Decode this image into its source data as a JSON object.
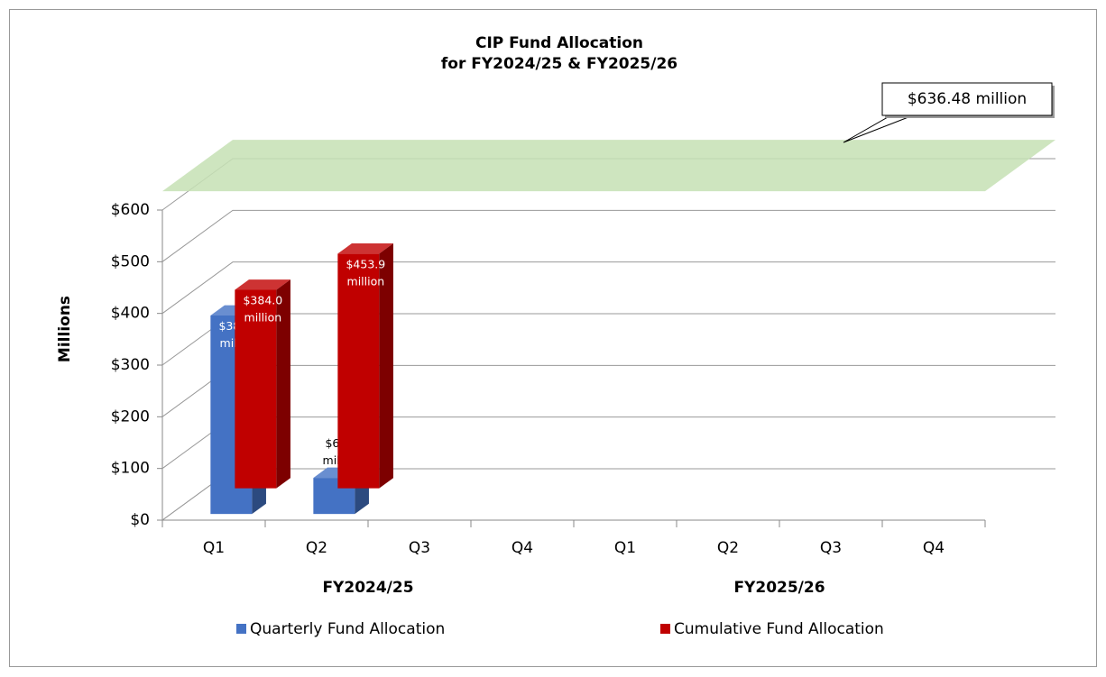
{
  "chart_data": {
    "type": "bar3d",
    "title": [
      "CIP Fund Allocation",
      "for FY2024/25 & FY2025/26"
    ],
    "y_label": "Millions",
    "categories": [
      "Q1",
      "Q2",
      "Q3",
      "Q4",
      "Q1",
      "Q2",
      "Q3",
      "Q4"
    ],
    "groups": [
      "FY2024/25",
      "FY2025/26"
    ],
    "series": [
      {
        "name": "Quarterly Fund Allocation",
        "color": "#4472c4",
        "values": [
          384.0,
          69.9,
          null,
          null,
          null,
          null,
          null,
          null
        ],
        "value_labels": [
          "$384.0\nmillion",
          "$69.9\nmillion",
          null,
          null,
          null,
          null,
          null,
          null
        ]
      },
      {
        "name": "Cumulative Fund Allocation",
        "color": "#c00000",
        "values": [
          384.0,
          453.9,
          null,
          null,
          null,
          null,
          null,
          null
        ],
        "value_labels": [
          "$384.0\nmillion",
          "$453.9\nmillion",
          null,
          null,
          null,
          null,
          null,
          null
        ]
      }
    ],
    "ylim": [
      0,
      600
    ],
    "yticks": [
      {
        "value": 0,
        "label": "$0"
      },
      {
        "value": 100,
        "label": "$100"
      },
      {
        "value": 200,
        "label": "$200"
      },
      {
        "value": 300,
        "label": "$300"
      },
      {
        "value": 400,
        "label": "$400"
      },
      {
        "value": 500,
        "label": "$500"
      },
      {
        "value": 600,
        "label": "$600"
      }
    ],
    "callout": {
      "value": 636.48,
      "label": "$636.48 million"
    },
    "grid": true
  }
}
